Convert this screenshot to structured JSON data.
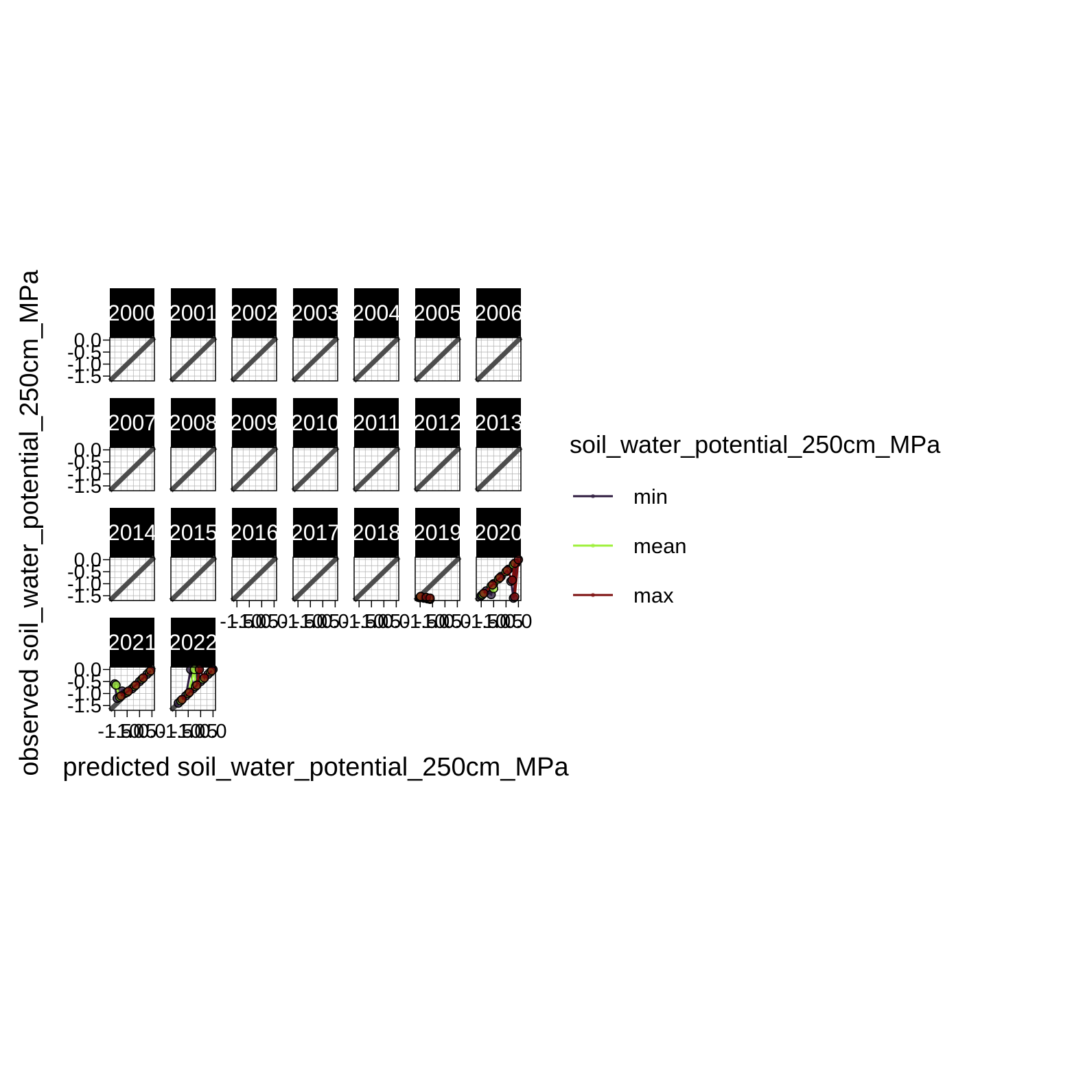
{
  "chart_data": {
    "type": "scatter",
    "facet_by": "year",
    "facets": [
      "2000",
      "2001",
      "2002",
      "2003",
      "2004",
      "2005",
      "2006",
      "2007",
      "2008",
      "2009",
      "2010",
      "2011",
      "2012",
      "2013",
      "2014",
      "2015",
      "2016",
      "2017",
      "2018",
      "2019",
      "2020",
      "2021",
      "2022"
    ],
    "xlabel": "predicted soil_water_potential_250cm_MPa",
    "ylabel": "observed soil_water_potential_250cm_MPa",
    "xlim": [
      -1.7,
      0.1
    ],
    "ylim": [
      -1.7,
      0.1
    ],
    "x_ticks": [
      -1.5,
      -1.0,
      -0.5,
      0.0
    ],
    "y_ticks": [
      -1.5,
      -1.0,
      -0.5,
      0.0
    ],
    "x_tick_labels": [
      "-1.5",
      "-1.0",
      "-0.5",
      "0.0"
    ],
    "y_tick_labels": [
      "-1.5",
      "-1.0",
      "-0.5",
      "0.0"
    ],
    "reference_line": "y = x",
    "grid": true,
    "legend": {
      "title": "soil_water_potential_250cm_MPa",
      "position": "right",
      "entries": [
        {
          "label": "min",
          "color": "#2d1a3e"
        },
        {
          "label": "mean",
          "color": "#9ef03a"
        },
        {
          "label": "max",
          "color": "#7b0c0c"
        }
      ]
    },
    "series": [
      {
        "name": "min",
        "facet_points": {
          "2019": [
            [
              -1.52,
              -1.58
            ],
            [
              -1.35,
              -1.6
            ],
            [
              -1.2,
              -1.63
            ],
            [
              -1.1,
              -1.65
            ]
          ],
          "2020": [
            [
              -1.5,
              -1.5
            ],
            [
              -1.3,
              -1.3
            ],
            [
              -1.0,
              -1.0
            ],
            [
              -0.7,
              -0.7
            ],
            [
              -0.4,
              -0.4
            ],
            [
              -0.1,
              -0.15
            ],
            [
              -0.3,
              -0.9
            ],
            [
              -0.2,
              -1.6
            ],
            [
              -1.1,
              -1.45
            ]
          ],
          "2021": [
            [
              -1.4,
              -1.2
            ],
            [
              -1.1,
              -1.0
            ],
            [
              -0.8,
              -0.8
            ],
            [
              -0.5,
              -0.5
            ],
            [
              -0.2,
              -0.2
            ],
            [
              -1.5,
              -0.6
            ],
            [
              -1.2,
              -0.9
            ]
          ],
          "2022": [
            [
              -1.4,
              -1.4
            ],
            [
              -1.1,
              -1.1
            ],
            [
              -0.8,
              -0.8
            ],
            [
              -0.5,
              -0.5
            ],
            [
              -0.2,
              -0.2
            ],
            [
              0.0,
              0.0
            ],
            [
              -0.9,
              0.0
            ],
            [
              -0.6,
              0.0
            ]
          ]
        }
      },
      {
        "name": "mean",
        "facet_points": {
          "2019": [
            [
              -1.5,
              -1.55
            ],
            [
              -1.3,
              -1.58
            ],
            [
              -1.15,
              -1.62
            ]
          ],
          "2020": [
            [
              -1.45,
              -1.45
            ],
            [
              -1.1,
              -1.1
            ],
            [
              -0.8,
              -0.8
            ],
            [
              -0.5,
              -0.5
            ],
            [
              -0.2,
              -0.2
            ],
            [
              -1.0,
              -1.2
            ]
          ],
          "2021": [
            [
              -1.3,
              -1.15
            ],
            [
              -1.0,
              -0.95
            ],
            [
              -0.7,
              -0.7
            ],
            [
              -0.4,
              -0.4
            ],
            [
              -0.1,
              -0.1
            ],
            [
              -1.45,
              -0.65
            ]
          ],
          "2022": [
            [
              -1.3,
              -1.3
            ],
            [
              -1.0,
              -1.0
            ],
            [
              -0.7,
              -0.7
            ],
            [
              -0.4,
              -0.4
            ],
            [
              -0.1,
              -0.1
            ],
            [
              -0.75,
              0.0
            ]
          ]
        }
      },
      {
        "name": "max",
        "facet_points": {
          "2019": [
            [
              -1.48,
              -1.53
            ],
            [
              -1.25,
              -1.57
            ],
            [
              -1.1,
              -1.6
            ]
          ],
          "2020": [
            [
              -1.4,
              -1.4
            ],
            [
              -1.05,
              -1.05
            ],
            [
              -0.75,
              -0.75
            ],
            [
              -0.45,
              -0.45
            ],
            [
              -0.15,
              -0.15
            ],
            [
              0.0,
              0.0
            ],
            [
              -0.25,
              -0.85
            ],
            [
              -0.15,
              -1.55
            ]
          ],
          "2021": [
            [
              -1.25,
              -1.1
            ],
            [
              -0.95,
              -0.9
            ],
            [
              -0.65,
              -0.65
            ],
            [
              -0.35,
              -0.35
            ],
            [
              -0.05,
              -0.05
            ]
          ],
          "2022": [
            [
              -1.25,
              -1.25
            ],
            [
              -0.95,
              -0.95
            ],
            [
              -0.65,
              -0.65
            ],
            [
              -0.35,
              -0.35
            ],
            [
              -0.05,
              -0.05
            ],
            [
              -0.55,
              0.0
            ]
          ]
        }
      }
    ]
  }
}
